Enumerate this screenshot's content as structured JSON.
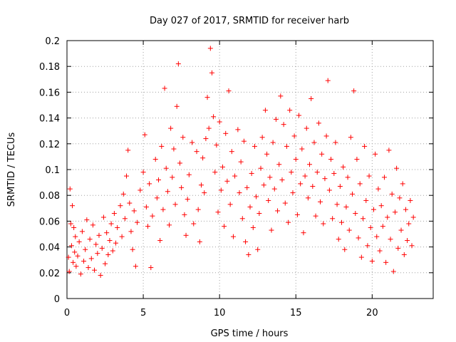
{
  "chart_data": {
    "type": "scatter",
    "title": "Day 027 of 2017, SRMTID for receiver harb",
    "xlabel": "GPS time / hours",
    "ylabel": "SRMTID / TECUs",
    "xlim": [
      0,
      24
    ],
    "ylim": [
      0,
      0.2
    ],
    "xticks": [
      0,
      5,
      10,
      15,
      20
    ],
    "xtick_labels": [
      "0",
      "5",
      "10",
      "15",
      "20"
    ],
    "yticks": [
      0,
      0.02,
      0.04,
      0.06,
      0.08,
      0.1,
      0.12,
      0.14,
      0.16,
      0.18,
      0.2
    ],
    "ytick_labels": [
      "0",
      "0.02",
      "0.04",
      "0.06",
      "0.08",
      "0.1",
      "0.12",
      "0.14",
      "0.16",
      "0.18",
      "0.2"
    ],
    "grid": true,
    "marker": "+",
    "series": [
      {
        "name": "harb",
        "color": "#ff0000",
        "points": [
          [
            0.1,
            0.032
          ],
          [
            0.15,
            0.021
          ],
          [
            0.2,
            0.085
          ],
          [
            0.25,
            0.058
          ],
          [
            0.3,
            0.041
          ],
          [
            0.35,
            0.072
          ],
          [
            0.4,
            0.028
          ],
          [
            0.45,
            0.055
          ],
          [
            0.5,
            0.036
          ],
          [
            0.55,
            0.048
          ],
          [
            0.6,
            0.025
          ],
          [
            0.7,
            0.033
          ],
          [
            0.8,
            0.044
          ],
          [
            0.9,
            0.019
          ],
          [
            1.0,
            0.052
          ],
          [
            1.1,
            0.029
          ],
          [
            1.2,
            0.038
          ],
          [
            1.3,
            0.061
          ],
          [
            1.4,
            0.024
          ],
          [
            1.5,
            0.046
          ],
          [
            1.6,
            0.031
          ],
          [
            1.7,
            0.057
          ],
          [
            1.8,
            0.022
          ],
          [
            1.9,
            0.042
          ],
          [
            2.0,
            0.035
          ],
          [
            2.1,
            0.049
          ],
          [
            2.2,
            0.018
          ],
          [
            2.3,
            0.039
          ],
          [
            2.4,
            0.063
          ],
          [
            2.5,
            0.027
          ],
          [
            2.6,
            0.051
          ],
          [
            2.7,
            0.034
          ],
          [
            2.8,
            0.045
          ],
          [
            2.9,
            0.058
          ],
          [
            3.0,
            0.037
          ],
          [
            3.1,
            0.066
          ],
          [
            3.2,
            0.043
          ],
          [
            3.3,
            0.055
          ],
          [
            3.5,
            0.072
          ],
          [
            3.6,
            0.048
          ],
          [
            3.7,
            0.081
          ],
          [
            3.8,
            0.062
          ],
          [
            3.9,
            0.095
          ],
          [
            4.0,
            0.115
          ],
          [
            4.1,
            0.074
          ],
          [
            4.2,
            0.052
          ],
          [
            4.3,
            0.038
          ],
          [
            4.4,
            0.068
          ],
          [
            4.5,
            0.025
          ],
          [
            4.6,
            0.059
          ],
          [
            4.8,
            0.084
          ],
          [
            5.0,
            0.098
          ],
          [
            5.1,
            0.127
          ],
          [
            5.2,
            0.071
          ],
          [
            5.3,
            0.056
          ],
          [
            5.4,
            0.089
          ],
          [
            5.5,
            0.024
          ],
          [
            5.6,
            0.064
          ],
          [
            5.8,
            0.108
          ],
          [
            5.9,
            0.078
          ],
          [
            6.0,
            0.092
          ],
          [
            6.1,
            0.045
          ],
          [
            6.2,
            0.118
          ],
          [
            6.3,
            0.069
          ],
          [
            6.4,
            0.163
          ],
          [
            6.5,
            0.101
          ],
          [
            6.6,
            0.083
          ],
          [
            6.7,
            0.057
          ],
          [
            6.8,
            0.132
          ],
          [
            6.9,
            0.094
          ],
          [
            7.0,
            0.116
          ],
          [
            7.1,
            0.073
          ],
          [
            7.2,
            0.149
          ],
          [
            7.3,
            0.182
          ],
          [
            7.4,
            0.105
          ],
          [
            7.5,
            0.086
          ],
          [
            7.6,
            0.125
          ],
          [
            7.7,
            0.065
          ],
          [
            7.8,
            0.049
          ],
          [
            7.9,
            0.077
          ],
          [
            8.0,
            0.096
          ],
          [
            8.2,
            0.121
          ],
          [
            8.3,
            0.058
          ],
          [
            8.5,
            0.114
          ],
          [
            8.6,
            0.069
          ],
          [
            8.7,
            0.044
          ],
          [
            8.8,
            0.088
          ],
          [
            8.9,
            0.109
          ],
          [
            9.0,
            0.082
          ],
          [
            9.1,
            0.124
          ],
          [
            9.2,
            0.156
          ],
          [
            9.3,
            0.132
          ],
          [
            9.4,
            0.194
          ],
          [
            9.5,
            0.175
          ],
          [
            9.6,
            0.141
          ],
          [
            9.7,
            0.098
          ],
          [
            9.8,
            0.119
          ],
          [
            9.9,
            0.067
          ],
          [
            10.0,
            0.137
          ],
          [
            10.1,
            0.084
          ],
          [
            10.2,
            0.102
          ],
          [
            10.3,
            0.056
          ],
          [
            10.4,
            0.128
          ],
          [
            10.5,
            0.091
          ],
          [
            10.6,
            0.161
          ],
          [
            10.7,
            0.073
          ],
          [
            10.8,
            0.114
          ],
          [
            10.9,
            0.048
          ],
          [
            11.0,
            0.095
          ],
          [
            11.2,
            0.131
          ],
          [
            11.3,
            0.082
          ],
          [
            11.4,
            0.106
          ],
          [
            11.5,
            0.062
          ],
          [
            11.6,
            0.122
          ],
          [
            11.7,
            0.044
          ],
          [
            11.8,
            0.086
          ],
          [
            11.9,
            0.034
          ],
          [
            12.0,
            0.071
          ],
          [
            12.1,
            0.097
          ],
          [
            12.2,
            0.055
          ],
          [
            12.3,
            0.118
          ],
          [
            12.4,
            0.079
          ],
          [
            12.5,
            0.038
          ],
          [
            12.6,
            0.066
          ],
          [
            12.7,
            0.101
          ],
          [
            12.8,
            0.125
          ],
          [
            12.9,
            0.088
          ],
          [
            13.0,
            0.146
          ],
          [
            13.1,
            0.112
          ],
          [
            13.2,
            0.076
          ],
          [
            13.3,
            0.094
          ],
          [
            13.4,
            0.053
          ],
          [
            13.5,
            0.121
          ],
          [
            13.6,
            0.085
          ],
          [
            13.7,
            0.139
          ],
          [
            13.8,
            0.068
          ],
          [
            13.9,
            0.104
          ],
          [
            14.0,
            0.157
          ],
          [
            14.1,
            0.092
          ],
          [
            14.2,
            0.135
          ],
          [
            14.3,
            0.074
          ],
          [
            14.4,
            0.118
          ],
          [
            14.5,
            0.059
          ],
          [
            14.6,
            0.146
          ],
          [
            14.7,
            0.098
          ],
          [
            14.8,
            0.082
          ],
          [
            14.9,
            0.126
          ],
          [
            15.0,
            0.108
          ],
          [
            15.1,
            0.065
          ],
          [
            15.2,
            0.142
          ],
          [
            15.3,
            0.089
          ],
          [
            15.4,
            0.116
          ],
          [
            15.5,
            0.051
          ],
          [
            15.6,
            0.095
          ],
          [
            15.7,
            0.132
          ],
          [
            15.8,
            0.078
          ],
          [
            15.9,
            0.104
          ],
          [
            16.0,
            0.155
          ],
          [
            16.1,
            0.087
          ],
          [
            16.2,
            0.121
          ],
          [
            16.3,
            0.064
          ],
          [
            16.4,
            0.098
          ],
          [
            16.5,
            0.136
          ],
          [
            16.6,
            0.075
          ],
          [
            16.7,
            0.112
          ],
          [
            16.8,
            0.058
          ],
          [
            16.9,
            0.093
          ],
          [
            17.0,
            0.126
          ],
          [
            17.1,
            0.169
          ],
          [
            17.2,
            0.084
          ],
          [
            17.3,
            0.108
          ],
          [
            17.4,
            0.062
          ],
          [
            17.5,
            0.097
          ],
          [
            17.6,
            0.121
          ],
          [
            17.7,
            0.073
          ],
          [
            17.8,
            0.046
          ],
          [
            17.9,
            0.087
          ],
          [
            18.0,
            0.059
          ],
          [
            18.1,
            0.102
          ],
          [
            18.2,
            0.038
          ],
          [
            18.3,
            0.071
          ],
          [
            18.4,
            0.094
          ],
          [
            18.5,
            0.053
          ],
          [
            18.6,
            0.125
          ],
          [
            18.7,
            0.081
          ],
          [
            18.8,
            0.161
          ],
          [
            18.9,
            0.066
          ],
          [
            19.0,
            0.108
          ],
          [
            19.1,
            0.047
          ],
          [
            19.2,
            0.089
          ],
          [
            19.3,
            0.032
          ],
          [
            19.4,
            0.062
          ],
          [
            19.5,
            0.118
          ],
          [
            19.6,
            0.076
          ],
          [
            19.7,
            0.041
          ],
          [
            19.8,
            0.095
          ],
          [
            19.9,
            0.055
          ],
          [
            20.0,
            0.029
          ],
          [
            20.1,
            0.069
          ],
          [
            20.2,
            0.112
          ],
          [
            20.3,
            0.048
          ],
          [
            20.4,
            0.085
          ],
          [
            20.5,
            0.037
          ],
          [
            20.6,
            0.072
          ],
          [
            20.7,
            0.056
          ],
          [
            20.8,
            0.094
          ],
          [
            20.9,
            0.028
          ],
          [
            21.0,
            0.063
          ],
          [
            21.1,
            0.115
          ],
          [
            21.2,
            0.046
          ],
          [
            21.3,
            0.081
          ],
          [
            21.4,
            0.021
          ],
          [
            21.5,
            0.067
          ],
          [
            21.6,
            0.101
          ],
          [
            21.7,
            0.039
          ],
          [
            21.8,
            0.078
          ],
          [
            21.9,
            0.053
          ],
          [
            22.0,
            0.089
          ],
          [
            22.1,
            0.034
          ],
          [
            22.2,
            0.069
          ],
          [
            22.3,
            0.045
          ],
          [
            22.4,
            0.058
          ],
          [
            22.5,
            0.076
          ],
          [
            22.6,
            0.041
          ],
          [
            22.7,
            0.063
          ]
        ]
      }
    ]
  }
}
